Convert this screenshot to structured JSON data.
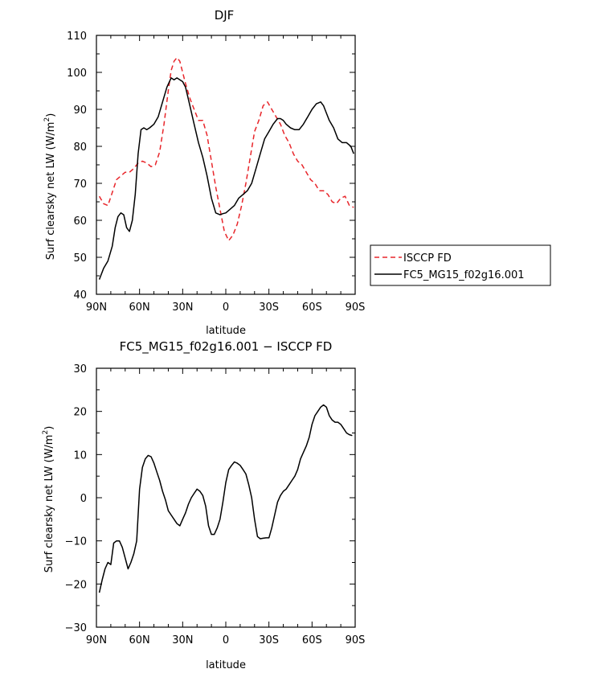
{
  "chart_data": [
    {
      "type": "line",
      "title": "DJF",
      "xlabel": "latitude",
      "ylabel": "Surf clearsky net LW (W/m2)",
      "ylabel_main": "Surf clearsky net LW (W/m",
      "ylabel_sup": "2",
      "ylabel_tail": ")",
      "xlim": [
        -90,
        90
      ],
      "ylim": [
        40,
        110
      ],
      "xticks": [
        -90,
        -60,
        -30,
        0,
        30,
        60,
        90
      ],
      "xtick_labels": [
        "90N",
        "60N",
        "30N",
        "0",
        "30S",
        "60S",
        "90S"
      ],
      "yticks": [
        40,
        50,
        60,
        70,
        80,
        90,
        100,
        110
      ],
      "ytick_labels": [
        "40",
        "50",
        "60",
        "70",
        "80",
        "90",
        "100",
        "110"
      ],
      "legend_position": "outside-right",
      "series": [
        {
          "name": "ISCCP FD",
          "color": "#e8262b",
          "dash": "dashed",
          "x": [
            -88,
            -85,
            -82,
            -79,
            -76,
            -73,
            -70,
            -67,
            -64,
            -61,
            -58,
            -55,
            -52,
            -49,
            -46,
            -43,
            -40,
            -38,
            -36,
            -34,
            -32,
            -30,
            -28,
            -25,
            -22,
            -19,
            -16,
            -13,
            -10,
            -7,
            -4,
            -1,
            2,
            5,
            8,
            11,
            14,
            17,
            20,
            23,
            26,
            29,
            32,
            35,
            38,
            41,
            44,
            47,
            50,
            53,
            56,
            59,
            62,
            65,
            68,
            71,
            74,
            77,
            80,
            83,
            86,
            89
          ],
          "values": [
            66.5,
            64.5,
            64,
            67.5,
            71,
            72,
            73,
            73,
            74,
            75.5,
            76,
            75.5,
            74.5,
            75,
            78.5,
            86,
            95,
            100.5,
            103,
            104,
            103,
            100,
            97,
            93,
            90,
            87,
            87,
            83,
            76,
            69,
            63,
            57,
            54.5,
            56,
            59,
            64,
            70,
            77,
            84,
            87,
            91,
            92,
            90,
            88,
            86,
            83,
            81,
            78,
            76,
            75,
            73,
            71,
            70,
            68,
            68,
            67,
            65,
            64.5,
            66,
            66.5,
            64,
            63.5
          ]
        },
        {
          "name": "FC5_MG15_f02g16.001",
          "color": "#000000",
          "dash": "solid",
          "x": [
            -88,
            -85,
            -82,
            -79,
            -77,
            -75,
            -73,
            -71,
            -69,
            -67,
            -65,
            -63,
            -61,
            -59,
            -57,
            -55,
            -53,
            -50,
            -47,
            -44,
            -41,
            -38,
            -36,
            -34,
            -32,
            -30,
            -28,
            -25,
            -22,
            -19,
            -16,
            -13,
            -10,
            -7,
            -4,
            -2,
            0,
            3,
            6,
            9,
            12,
            15,
            18,
            21,
            24,
            27,
            30,
            33,
            36,
            38,
            40,
            42,
            45,
            48,
            51,
            54,
            57,
            60,
            63,
            66,
            68,
            70,
            72,
            75,
            78,
            81,
            84,
            87,
            89
          ],
          "values": [
            44,
            47,
            49,
            53,
            58,
            61,
            62,
            61.5,
            58,
            57,
            60,
            67,
            78,
            84.5,
            85,
            84.5,
            85,
            86,
            88,
            92,
            96,
            98.5,
            98,
            98.5,
            98,
            97.5,
            96,
            91,
            86,
            81,
            77,
            72,
            66,
            62,
            61.5,
            61.8,
            62,
            63,
            64,
            66,
            67,
            68,
            70,
            74,
            78,
            82,
            84,
            86,
            87.5,
            87.5,
            87,
            86,
            85,
            84.5,
            84.5,
            86,
            88,
            90,
            91.5,
            92,
            91,
            89,
            87,
            85,
            82,
            81,
            81,
            80,
            78
          ]
        }
      ]
    },
    {
      "type": "line",
      "title": "FC5_MG15_f02g16.001 − ISCCP FD",
      "xlabel": "latitude",
      "ylabel": "Surf clearsky net LW (W/m2)",
      "ylabel_main": "Surf clearsky net LW (W/m",
      "ylabel_sup": "2",
      "ylabel_tail": ")",
      "xlim": [
        -90,
        90
      ],
      "ylim": [
        -30,
        30
      ],
      "xticks": [
        -90,
        -60,
        -30,
        0,
        30,
        60,
        90
      ],
      "xtick_labels": [
        "90N",
        "60N",
        "30N",
        "0",
        "30S",
        "60S",
        "90S"
      ],
      "yticks": [
        -30,
        -20,
        -10,
        0,
        10,
        20,
        30
      ],
      "ytick_labels": [
        "−30",
        "−20",
        "−10",
        "0",
        "10",
        "20",
        "30"
      ],
      "series": [
        {
          "color": "#000000",
          "dash": "solid",
          "x": [
            -88,
            -86,
            -84,
            -82,
            -80,
            -78,
            -76,
            -74,
            -72,
            -70,
            -68,
            -66,
            -64,
            -62,
            -60,
            -58,
            -56,
            -54,
            -52,
            -50,
            -48,
            -46,
            -44,
            -42,
            -40,
            -38,
            -36,
            -34,
            -32,
            -30,
            -28,
            -26,
            -24,
            -22,
            -20,
            -18,
            -16,
            -14,
            -12,
            -10,
            -8,
            -6,
            -4,
            -2,
            0,
            2,
            4,
            6,
            8,
            10,
            12,
            14,
            16,
            18,
            20,
            22,
            24,
            26,
            28,
            30,
            32,
            34,
            36,
            38,
            40,
            42,
            44,
            46,
            48,
            50,
            52,
            54,
            56,
            58,
            60,
            62,
            64,
            66,
            68,
            70,
            72,
            74,
            76,
            78,
            80,
            82,
            84,
            86,
            88
          ],
          "values": [
            -22,
            -19,
            -16.5,
            -15,
            -15.5,
            -10.5,
            -10,
            -10,
            -11.5,
            -14,
            -16.5,
            -15,
            -13,
            -10,
            2,
            7,
            9,
            9.8,
            9.5,
            8,
            6,
            4,
            1.5,
            -0.5,
            -3,
            -4,
            -5,
            -6,
            -6.5,
            -5,
            -3.5,
            -1.5,
            0,
            1,
            2,
            1.5,
            0.5,
            -2,
            -6.5,
            -8.5,
            -8.5,
            -7,
            -5,
            -1,
            3.5,
            6.5,
            7.5,
            8.3,
            8,
            7.5,
            6.5,
            5.5,
            3,
            0,
            -5,
            -9,
            -9.5,
            -9.4,
            -9.3,
            -9.3,
            -7,
            -4,
            -1,
            0.5,
            1.5,
            2,
            3,
            4,
            5,
            6.5,
            9,
            10.5,
            12,
            14,
            17,
            19,
            20,
            21,
            21.5,
            21,
            19,
            18,
            17.5,
            17.5,
            17,
            16,
            15,
            14.6,
            14.4
          ]
        }
      ]
    }
  ]
}
